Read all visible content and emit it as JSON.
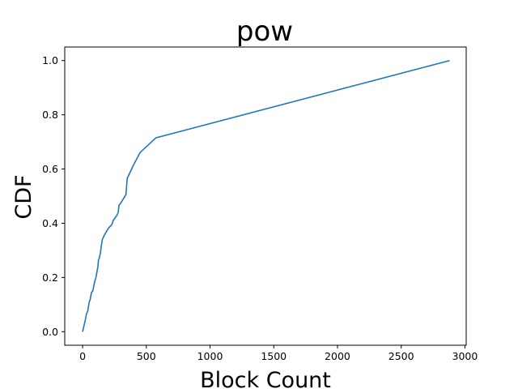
{
  "chart_data": {
    "type": "line",
    "title": "pow",
    "xlabel": "Block Count",
    "ylabel": "CDF",
    "xlim": [
      -140,
      3010
    ],
    "ylim": [
      -0.05,
      1.05
    ],
    "xticks": [
      0,
      500,
      1000,
      1500,
      2000,
      2500,
      3000
    ],
    "yticks": [
      0.0,
      0.2,
      0.4,
      0.6,
      0.8,
      1.0
    ],
    "grid": false,
    "legend": "none",
    "line_color": "#1f77b4",
    "series": [
      {
        "x": [
          0,
          10,
          20,
          30,
          40,
          50,
          60,
          70,
          80,
          95,
          105,
          120,
          125,
          130,
          140,
          145,
          155,
          170,
          200,
          230,
          240,
          270,
          280,
          285,
          300,
          340,
          345,
          350,
          365,
          400,
          450,
          575,
          2880
        ],
        "y": [
          0.0,
          0.02,
          0.04,
          0.065,
          0.075,
          0.105,
          0.12,
          0.145,
          0.15,
          0.185,
          0.2,
          0.24,
          0.265,
          0.27,
          0.29,
          0.31,
          0.34,
          0.355,
          0.38,
          0.395,
          0.41,
          0.43,
          0.44,
          0.465,
          0.475,
          0.505,
          0.535,
          0.565,
          0.58,
          0.615,
          0.66,
          0.715,
          1.0
        ]
      }
    ]
  }
}
